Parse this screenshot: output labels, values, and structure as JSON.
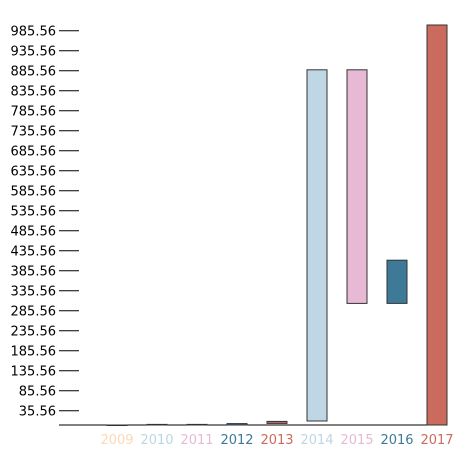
{
  "chart_data": {
    "type": "bar",
    "variant": "floating",
    "categories": [
      "2009",
      "2010",
      "2011",
      "2012",
      "2013",
      "2014",
      "2015",
      "2016",
      "2017"
    ],
    "bars": [
      {
        "label": "2009",
        "low": 0,
        "high": 0,
        "color": "#fdd8b5"
      },
      {
        "label": "2010",
        "low": 0,
        "high": 1.5,
        "color": "#bfd6e4"
      },
      {
        "label": "2011",
        "low": 0,
        "high": 1.5,
        "color": "#e8b9d4"
      },
      {
        "label": "2012",
        "low": 0,
        "high": 3.5,
        "color": "#3e7a98"
      },
      {
        "label": "2013",
        "low": 4,
        "high": 9,
        "color": "#cb6b5e"
      },
      {
        "label": "2014",
        "low": 10,
        "high": 888,
        "color": "#bfd6e4"
      },
      {
        "label": "2015",
        "low": 304,
        "high": 888,
        "color": "#e8b9d4"
      },
      {
        "label": "2016",
        "low": 304,
        "high": 412,
        "color": "#3e7a98"
      },
      {
        "label": "2017",
        "low": 0,
        "high": 1000,
        "color": "#cb6b5e"
      }
    ],
    "yticks": [
      "35.56",
      "85.56",
      "135.56",
      "185.56",
      "235.56",
      "285.56",
      "335.56",
      "385.56",
      "435.56",
      "485.56",
      "535.56",
      "585.56",
      "635.56",
      "685.56",
      "735.56",
      "785.56",
      "835.56",
      "885.56",
      "935.56",
      "985.56"
    ],
    "ylim": [
      0,
      1000
    ],
    "grid": false,
    "legend": "none",
    "bar_stroke": "#333333"
  }
}
